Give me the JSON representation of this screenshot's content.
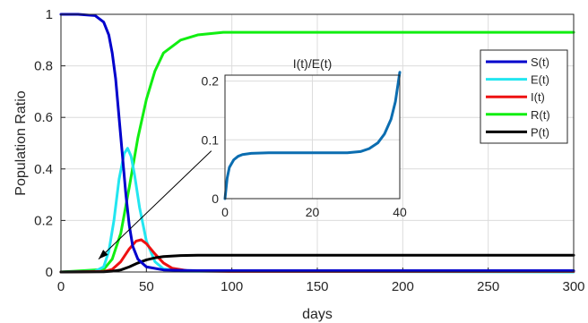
{
  "chart_data": [
    {
      "type": "line",
      "xlabel": "days",
      "ylabel": "Population Ratio",
      "xlim": [
        0,
        300
      ],
      "ylim": [
        0,
        1
      ],
      "xticks": [
        "0",
        "50",
        "100",
        "150",
        "200",
        "250",
        "300"
      ],
      "yticks": [
        "0",
        "0.2",
        "0.4",
        "0.6",
        "0.8",
        "1"
      ],
      "grid": true,
      "legend_position": "top-right",
      "series": [
        {
          "name": "S(t)",
          "color": "#0000cc",
          "points": [
            [
              0,
              1
            ],
            [
              10,
              1
            ],
            [
              20,
              0.995
            ],
            [
              25,
              0.97
            ],
            [
              28,
              0.92
            ],
            [
              30,
              0.85
            ],
            [
              32,
              0.75
            ],
            [
              34,
              0.6
            ],
            [
              36,
              0.45
            ],
            [
              38,
              0.3
            ],
            [
              40,
              0.18
            ],
            [
              42,
              0.1
            ],
            [
              45,
              0.05
            ],
            [
              50,
              0.02
            ],
            [
              60,
              0.008
            ],
            [
              80,
              0.005
            ],
            [
              300,
              0.005
            ]
          ]
        },
        {
          "name": "E(t)",
          "color": "#22e6f0",
          "points": [
            [
              0,
              0
            ],
            [
              20,
              0.003
            ],
            [
              25,
              0.02
            ],
            [
              28,
              0.08
            ],
            [
              31,
              0.2
            ],
            [
              34,
              0.36
            ],
            [
              37,
              0.46
            ],
            [
              39,
              0.48
            ],
            [
              41,
              0.45
            ],
            [
              43,
              0.38
            ],
            [
              46,
              0.25
            ],
            [
              50,
              0.12
            ],
            [
              55,
              0.04
            ],
            [
              60,
              0.012
            ],
            [
              70,
              0.003
            ],
            [
              300,
              0
            ]
          ]
        },
        {
          "name": "I(t)",
          "color": "#ee1111",
          "points": [
            [
              0,
              0
            ],
            [
              25,
              0.002
            ],
            [
              30,
              0.01
            ],
            [
              35,
              0.04
            ],
            [
              40,
              0.09
            ],
            [
              44,
              0.12
            ],
            [
              47,
              0.125
            ],
            [
              50,
              0.11
            ],
            [
              55,
              0.07
            ],
            [
              60,
              0.035
            ],
            [
              65,
              0.015
            ],
            [
              75,
              0.004
            ],
            [
              100,
              0.002
            ],
            [
              300,
              0.002
            ]
          ]
        },
        {
          "name": "R(t)",
          "color": "#11ee11",
          "points": [
            [
              0,
              0
            ],
            [
              25,
              0.01
            ],
            [
              30,
              0.05
            ],
            [
              35,
              0.15
            ],
            [
              40,
              0.33
            ],
            [
              45,
              0.52
            ],
            [
              50,
              0.67
            ],
            [
              55,
              0.78
            ],
            [
              60,
              0.85
            ],
            [
              70,
              0.9
            ],
            [
              80,
              0.92
            ],
            [
              95,
              0.93
            ],
            [
              300,
              0.93
            ]
          ]
        },
        {
          "name": "P(t)",
          "color": "#000000",
          "points": [
            [
              0,
              0
            ],
            [
              25,
              0.001
            ],
            [
              30,
              0.003
            ],
            [
              35,
              0.008
            ],
            [
              40,
              0.02
            ],
            [
              45,
              0.035
            ],
            [
              50,
              0.047
            ],
            [
              55,
              0.055
            ],
            [
              60,
              0.06
            ],
            [
              70,
              0.064
            ],
            [
              80,
              0.065
            ],
            [
              300,
              0.065
            ]
          ]
        }
      ],
      "annotation": {
        "type": "arrow",
        "from": [
          88,
          0.47
        ],
        "to": [
          22,
          0.05
        ]
      }
    },
    {
      "type": "line",
      "title": "I(t)/E(t)",
      "xlim": [
        0,
        40
      ],
      "ylim": [
        0,
        0.21
      ],
      "xticks": [
        "0",
        "20",
        "40"
      ],
      "yticks": [
        "0",
        "0.1",
        "0.2"
      ],
      "grid": true,
      "series": [
        {
          "color": "#0b6db0",
          "points": [
            [
              0,
              0
            ],
            [
              0.5,
              0.035
            ],
            [
              1,
              0.053
            ],
            [
              2,
              0.066
            ],
            [
              3,
              0.072
            ],
            [
              4,
              0.075
            ],
            [
              6,
              0.077
            ],
            [
              10,
              0.078
            ],
            [
              20,
              0.078
            ],
            [
              28,
              0.078
            ],
            [
              31,
              0.08
            ],
            [
              33,
              0.085
            ],
            [
              35,
              0.095
            ],
            [
              36.5,
              0.11
            ],
            [
              38,
              0.135
            ],
            [
              39,
              0.165
            ],
            [
              40,
              0.215
            ]
          ]
        }
      ]
    }
  ]
}
